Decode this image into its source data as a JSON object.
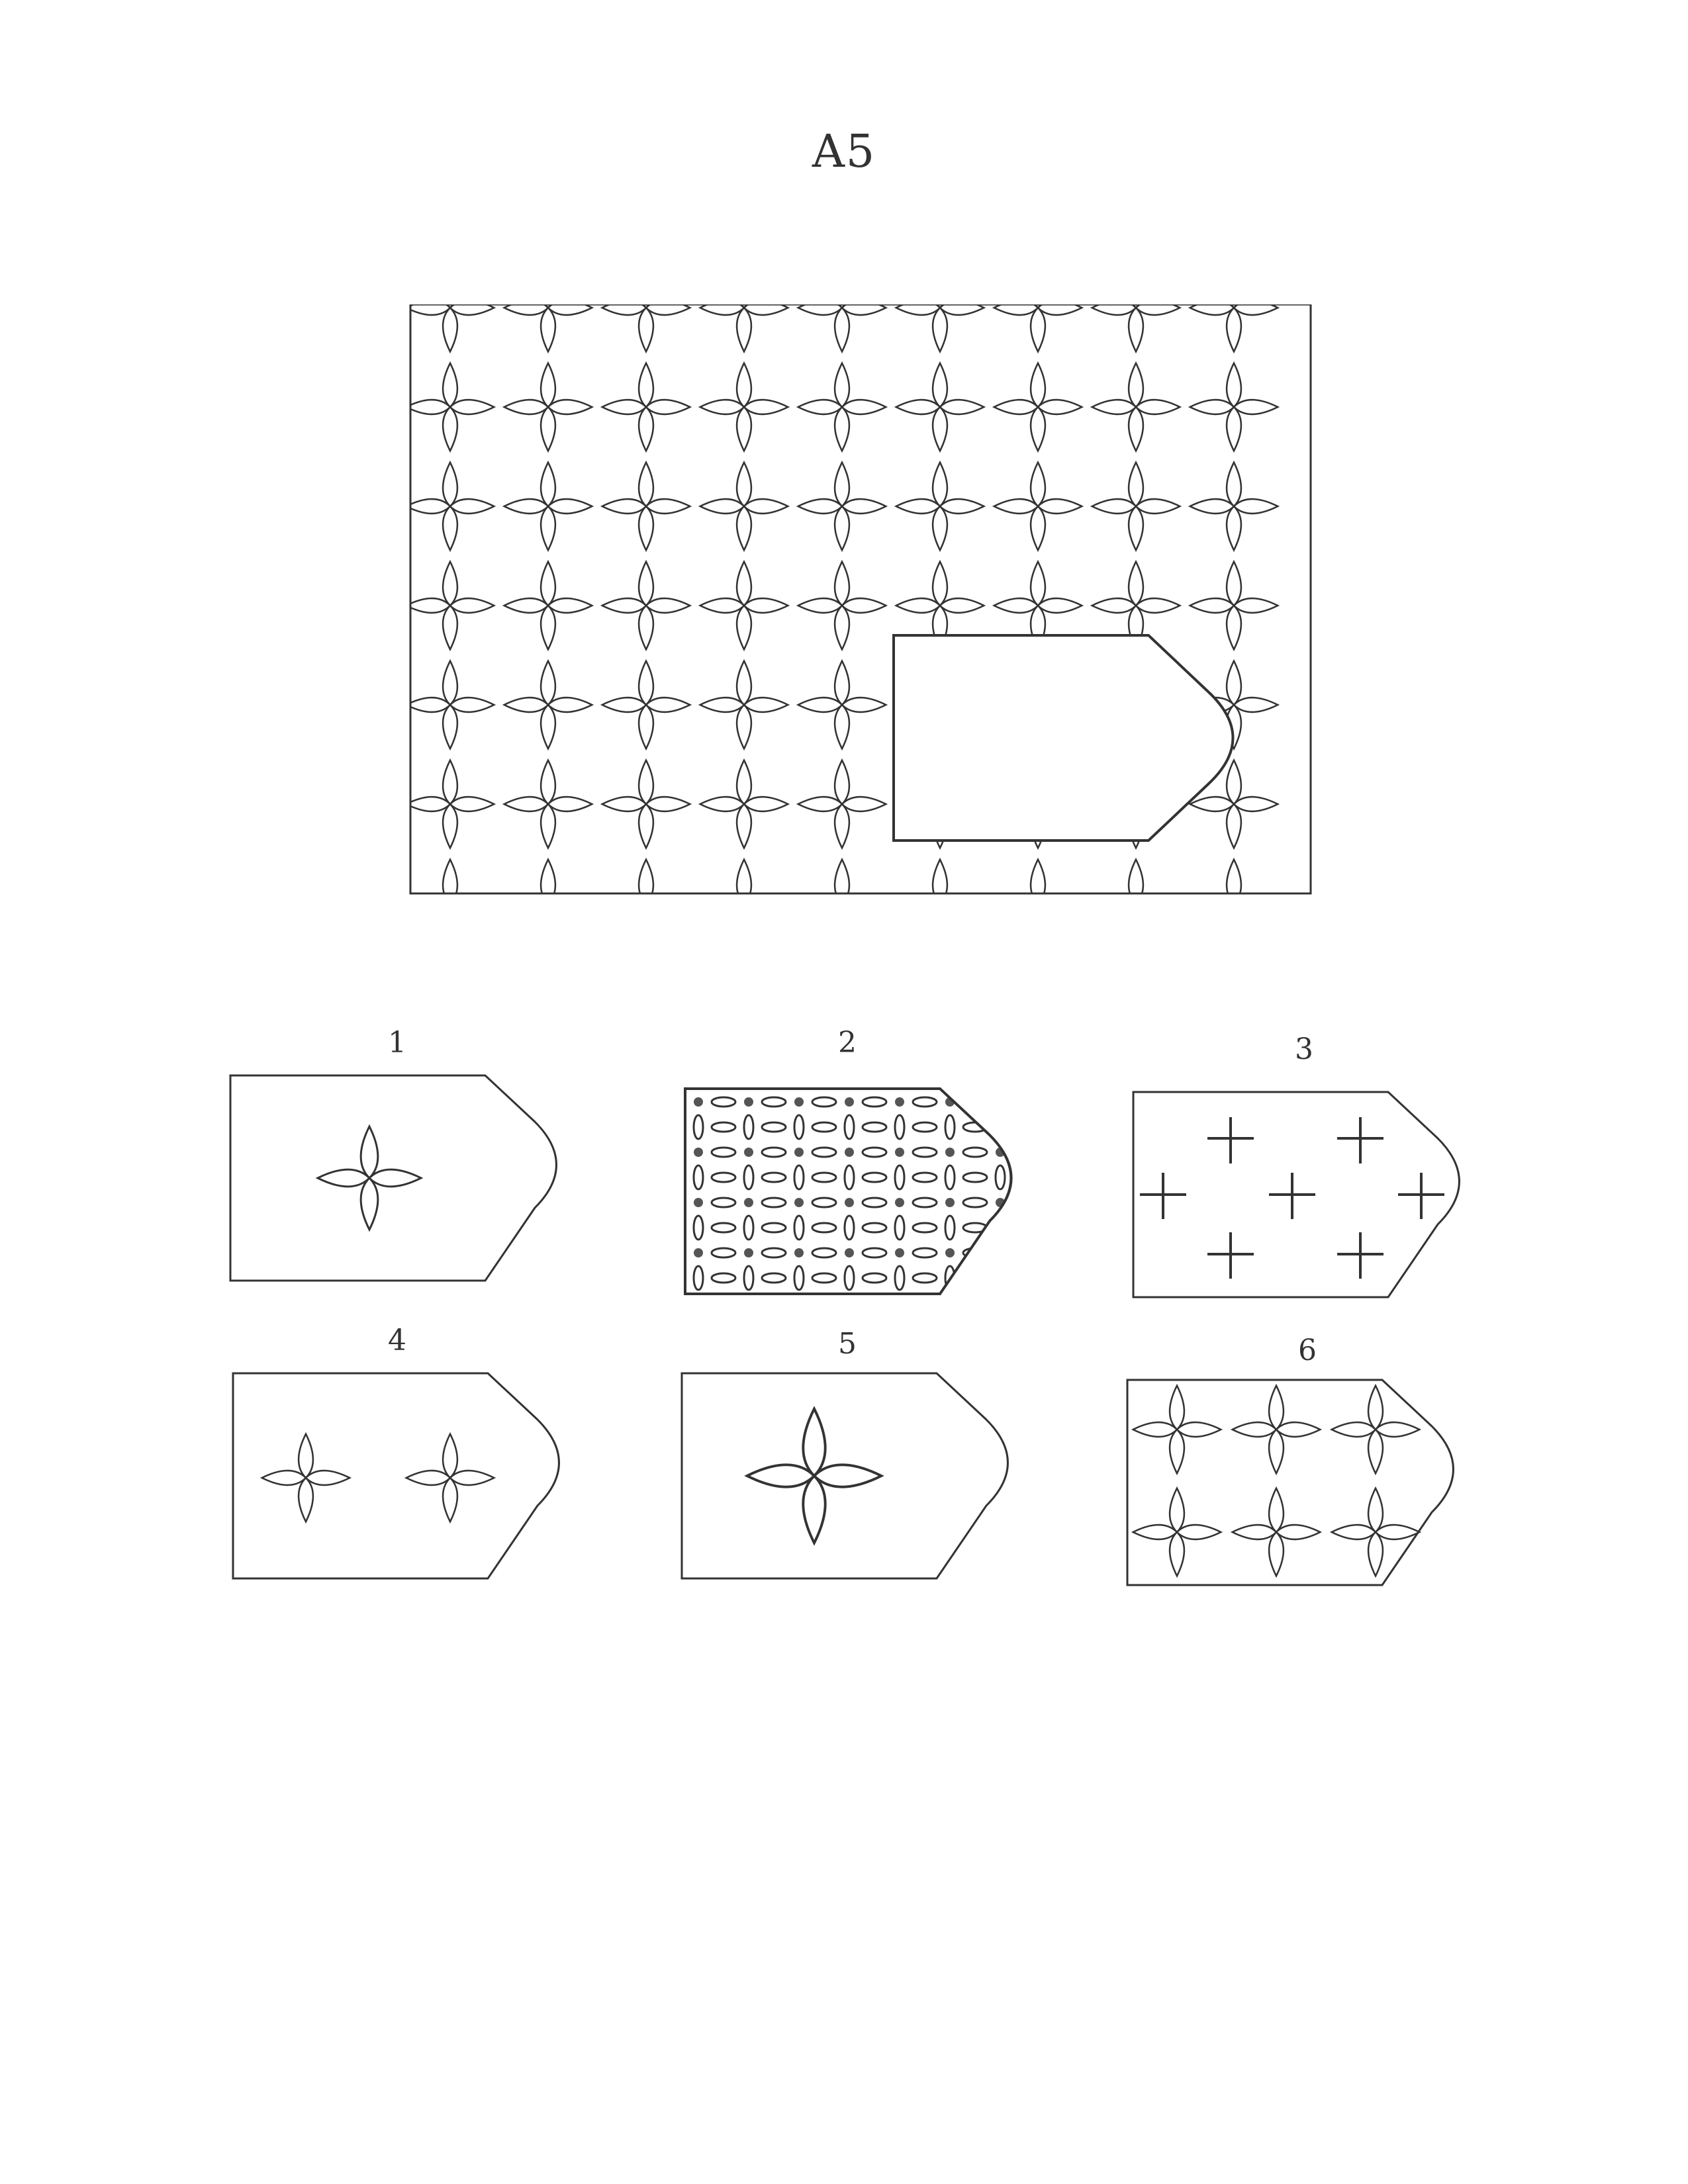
{
  "page": {
    "title": "A5"
  },
  "problem": {
    "pattern": "four-petal-flower",
    "missing_piece_shape": "rectangle-with-rounded-point",
    "pattern_color": "#333333"
  },
  "options": [
    {
      "label": "1",
      "pattern": "single-flower"
    },
    {
      "label": "2",
      "pattern": "lattice-with-dots"
    },
    {
      "label": "3",
      "pattern": "crosses"
    },
    {
      "label": "4",
      "pattern": "two-flowers"
    },
    {
      "label": "5",
      "pattern": "single-large-flower"
    },
    {
      "label": "6",
      "pattern": "six-flowers"
    }
  ]
}
